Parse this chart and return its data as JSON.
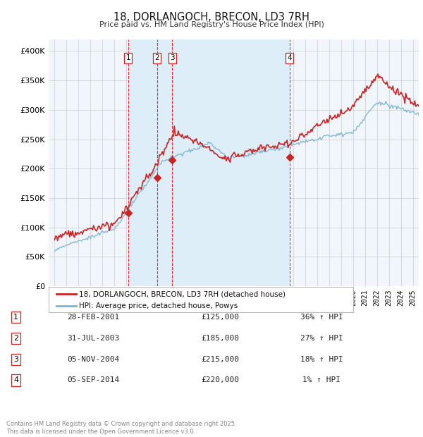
{
  "title": "18, DORLANGOCH, BRECON, LD3 7RH",
  "subtitle": "Price paid vs. HM Land Registry's House Price Index (HPI)",
  "hpi_color": "#7ab3d4",
  "price_color": "#cc2222",
  "background_color": "#ddeef8",
  "ylim": [
    0,
    420000
  ],
  "yticks": [
    0,
    50000,
    100000,
    150000,
    200000,
    250000,
    300000,
    350000,
    400000
  ],
  "xlim_start": 1994.5,
  "xlim_end": 2025.5,
  "transactions": [
    {
      "num": 1,
      "date": "28-FEB-2001",
      "year": 2001.16,
      "price": 125000,
      "pct": "36%"
    },
    {
      "num": 2,
      "date": "31-JUL-2003",
      "year": 2003.58,
      "price": 185000,
      "pct": "27%"
    },
    {
      "num": 3,
      "date": "05-NOV-2004",
      "year": 2004.84,
      "price": 215000,
      "pct": "18%"
    },
    {
      "num": 4,
      "date": "05-SEP-2014",
      "year": 2014.68,
      "price": 220000,
      "pct": "1%"
    }
  ],
  "legend_label_price": "18, DORLANGOCH, BRECON, LD3 7RH (detached house)",
  "legend_label_hpi": "HPI: Average price, detached house, Powys",
  "footer": "Contains HM Land Registry data © Crown copyright and database right 2025.\nThis data is licensed under the Open Government Licence v3.0.",
  "table_rows": [
    [
      "1",
      "28-FEB-2001",
      "£125,000",
      "36% ↑ HPI"
    ],
    [
      "2",
      "31-JUL-2003",
      "£185,000",
      "27% ↑ HPI"
    ],
    [
      "3",
      "05-NOV-2004",
      "£215,000",
      "18% ↑ HPI"
    ],
    [
      "4",
      "05-SEP-2014",
      "£220,000",
      "1% ↑ HPI"
    ]
  ]
}
